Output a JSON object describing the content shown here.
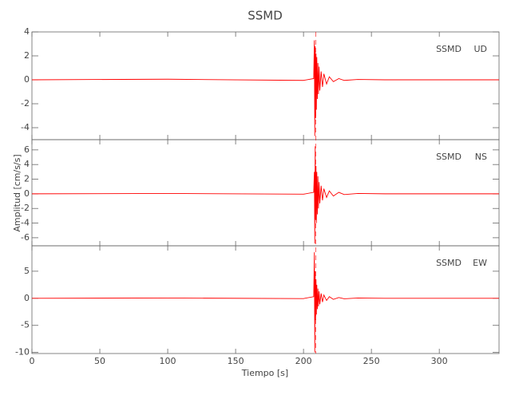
{
  "chart_data": {
    "type": "line",
    "title": "SSMD",
    "x_label": "Tiempo [s]",
    "y_label": "Amplitud [cm/s/s]",
    "xlim": [
      0,
      344
    ],
    "xticks": [
      0,
      50,
      100,
      150,
      200,
      250,
      300
    ],
    "marker_x": 209,
    "x": [
      0,
      100,
      200,
      207.5,
      208,
      208.3,
      208.6,
      208.9,
      209.2,
      209.5,
      209.8,
      210.2,
      210.6,
      211,
      211.5,
      212,
      213,
      214,
      215,
      217,
      219,
      222,
      226,
      230,
      240,
      260,
      300,
      344
    ],
    "panels": [
      {
        "station": "SSMD",
        "component": "UD",
        "color": "#ff0000",
        "ylim": [
          -5,
          4
        ],
        "yticks": [
          -4,
          -2,
          0,
          2,
          4
        ],
        "values": [
          0,
          0.05,
          -0.05,
          0.1,
          3.3,
          -4.7,
          2.8,
          -3.2,
          2.2,
          -2.5,
          1.9,
          -1.6,
          1.4,
          -1.2,
          1.1,
          -0.9,
          0.7,
          -0.6,
          0.5,
          -0.35,
          0.25,
          -0.15,
          0.1,
          -0.05,
          0.03,
          0,
          0,
          0
        ]
      },
      {
        "station": "SSMD",
        "component": "NS",
        "color": "#ff0000",
        "ylim": [
          -7.1,
          7.4
        ],
        "yticks": [
          -6,
          -4,
          -2,
          0,
          2,
          4,
          6
        ],
        "values": [
          0,
          0.05,
          -0.05,
          0.2,
          3,
          -6.8,
          6.5,
          -3.5,
          3.8,
          -4,
          3,
          -2.8,
          2.4,
          -2,
          1.6,
          -1.3,
          1.1,
          -0.9,
          0.7,
          -0.5,
          0.4,
          -0.3,
          0.2,
          -0.1,
          0.05,
          0,
          0,
          0
        ]
      },
      {
        "station": "SSMD",
        "component": "EW",
        "color": "#ff0000",
        "ylim": [
          -10.2,
          9.7
        ],
        "yticks": [
          -10,
          -5,
          0,
          5
        ],
        "values": [
          0,
          0.05,
          -0.05,
          0.3,
          8.5,
          -10,
          5,
          -4,
          3.5,
          -3,
          2.5,
          -2,
          1.8,
          -1.5,
          1.3,
          -1.1,
          0.9,
          -0.7,
          0.6,
          -0.4,
          0.3,
          -0.2,
          0.15,
          -0.1,
          0.05,
          0,
          0,
          0
        ]
      }
    ]
  }
}
